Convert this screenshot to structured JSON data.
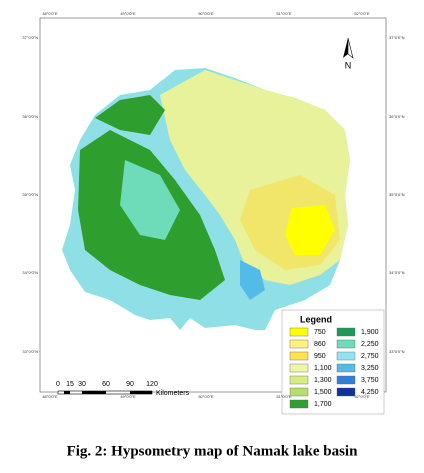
{
  "map": {
    "north_arrow": "N",
    "top_labels": [
      "48°0'0\"E",
      "49°0'0\"E",
      "50°0'0\"E",
      "51°0'0\"E",
      "52°0'0\"E"
    ],
    "bottom_labels": [
      "48°0'0\"E",
      "49°0'0\"E",
      "50°0'0\"E",
      "51°0'0\"E",
      "52°0'0\"E"
    ],
    "left_labels": [
      "37°0'0\"N",
      "36°0'0\"N",
      "35°0'0\"N",
      "34°0'0\"N",
      "33°0'0\"N"
    ],
    "right_labels": [
      "37°0'0\"N",
      "36°0'0\"N",
      "35°0'0\"N",
      "34°0'0\"N",
      "33°0'0\"N"
    ],
    "legend": {
      "title": "Legend",
      "items": [
        {
          "label": "750",
          "color": "#ffff00"
        },
        {
          "label": "860",
          "color": "#fff27a"
        },
        {
          "label": "950",
          "color": "#ffe34d"
        },
        {
          "label": "1,100",
          "color": "#eef5a6"
        },
        {
          "label": "1,300",
          "color": "#d6ee80"
        },
        {
          "label": "1,500",
          "color": "#b5de6a"
        },
        {
          "label": "1,700",
          "color": "#2e9e2e"
        },
        {
          "label": "1,900",
          "color": "#1c9a5a"
        },
        {
          "label": "2,250",
          "color": "#6edcb8"
        },
        {
          "label": "2,750",
          "color": "#90e4f2"
        },
        {
          "label": "3,250",
          "color": "#52bbe8"
        },
        {
          "label": "3,750",
          "color": "#2f7ed8"
        },
        {
          "label": "4,250",
          "color": "#10309a"
        }
      ]
    },
    "scale_bar": {
      "ticks": [
        "0",
        "15",
        "30",
        "60",
        "90",
        "120"
      ],
      "unit": "Kilometers"
    }
  },
  "caption": "Fig. 2: Hypsometry map of Namak lake basin"
}
